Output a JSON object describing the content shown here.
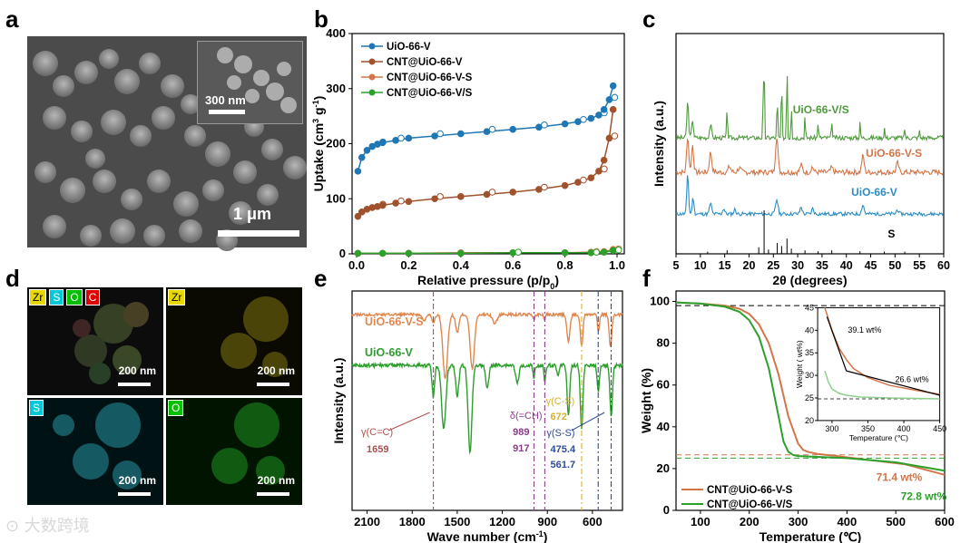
{
  "panels": {
    "a": {
      "letter": "a",
      "inset_scale": "300 nm",
      "main_scale": "1 μm"
    },
    "b": {
      "letter": "b"
    },
    "c": {
      "letter": "c"
    },
    "d": {
      "letter": "d",
      "tiles": [
        {
          "labels": [
            "Zr",
            "S",
            "O",
            "C"
          ],
          "scale": "200 nm"
        },
        {
          "labels": [
            "Zr"
          ],
          "scale": "200 nm"
        },
        {
          "labels": [
            "S"
          ],
          "scale": "200 nm"
        },
        {
          "labels": [
            "O"
          ],
          "scale": "200 nm"
        }
      ]
    },
    "e": {
      "letter": "e"
    },
    "f": {
      "letter": "f"
    }
  },
  "colors": {
    "blue": "#1f77b4",
    "brown": "#a0522d",
    "orange": "#d2764a",
    "green": "#2ca02c",
    "ftir_orange": "#e0874f",
    "ftir_green": "#2e9e2e"
  },
  "chart_data": [
    {
      "id": "b",
      "type": "line",
      "xlabel": "Relative pressure (p/p",
      "xlabel_sub": "0",
      "xlabel_end": ")",
      "ylabel": "Uptake (cm",
      "ylabel_sup": "3",
      "ylabel_mid": " g",
      "ylabel_sup2": "-1",
      "ylabel_end": ")",
      "xlim": [
        0,
        1.0
      ],
      "ylim": [
        0,
        400
      ],
      "xticks": [
        "0.0",
        "0.2",
        "0.4",
        "0.6",
        "0.8",
        "1.0"
      ],
      "xtick_values": [
        0,
        0.2,
        0.4,
        0.6,
        0.8,
        1.0
      ],
      "yticks": [
        "0",
        "100",
        "200",
        "300",
        "400"
      ],
      "ytick_values": [
        0,
        100,
        200,
        300,
        400
      ],
      "legend": [
        "UiO-66-V",
        "CNT@UiO-66-V",
        "CNT@UiO-66-V-S",
        "CNT@UiO-66-V/S"
      ],
      "series": [
        {
          "name": "UiO-66-V",
          "color": "#1f77b4",
          "x": [
            0.005,
            0.02,
            0.04,
            0.06,
            0.08,
            0.1,
            0.15,
            0.2,
            0.3,
            0.4,
            0.5,
            0.6,
            0.7,
            0.8,
            0.85,
            0.9,
            0.93,
            0.95,
            0.97,
            0.985
          ],
          "y": [
            150,
            175,
            188,
            195,
            199,
            202,
            206,
            210,
            214,
            218,
            222,
            226,
            230,
            236,
            240,
            246,
            252,
            262,
            280,
            305
          ]
        },
        {
          "name": "CNT@UiO-66-V",
          "color": "#a0522d",
          "x": [
            0.005,
            0.02,
            0.04,
            0.06,
            0.08,
            0.1,
            0.15,
            0.2,
            0.3,
            0.4,
            0.5,
            0.6,
            0.7,
            0.8,
            0.85,
            0.9,
            0.93,
            0.95,
            0.97,
            0.985
          ],
          "y": [
            68,
            76,
            81,
            84,
            86,
            88,
            92,
            95,
            100,
            104,
            108,
            112,
            117,
            124,
            130,
            138,
            150,
            170,
            210,
            262
          ]
        },
        {
          "name": "CNT@UiO-66-V-S",
          "color": "#d2764a",
          "x": [
            0.005,
            0.1,
            0.2,
            0.4,
            0.6,
            0.8,
            0.9,
            0.95,
            0.985
          ],
          "y": [
            1,
            1,
            1,
            2,
            2,
            2,
            3,
            4,
            8
          ]
        },
        {
          "name": "CNT@UiO-66-V/S",
          "color": "#2ca02c",
          "x": [
            0.005,
            0.1,
            0.2,
            0.4,
            0.6,
            0.8,
            0.9,
            0.95,
            0.985
          ],
          "y": [
            1,
            1,
            1,
            1,
            2,
            2,
            2,
            3,
            6
          ]
        }
      ]
    },
    {
      "id": "c",
      "type": "line",
      "xlabel": "2θ (degrees)",
      "ylabel": "Intensity (a.u.)",
      "xlim": [
        5,
        60
      ],
      "xticks": [
        "5",
        "10",
        "15",
        "20",
        "25",
        "30",
        "35",
        "40",
        "45",
        "50",
        "55",
        "60"
      ],
      "xtick_values": [
        5,
        10,
        15,
        20,
        25,
        30,
        35,
        40,
        45,
        50,
        55,
        60
      ],
      "series": [
        {
          "name": "UiO-66-V/S",
          "color": "#4f9a3c"
        },
        {
          "name": "UiO-66-V-S",
          "color": "#d2764a"
        },
        {
          "name": "UiO-66-V",
          "color": "#2b8cc4"
        },
        {
          "name": "S",
          "color": "#000000"
        }
      ],
      "sulfur_peaks": [
        [
          11.5,
          5
        ],
        [
          15.5,
          8
        ],
        [
          22.0,
          15
        ],
        [
          23.1,
          100
        ],
        [
          24.0,
          10
        ],
        [
          25.8,
          25
        ],
        [
          26.7,
          18
        ],
        [
          27.8,
          35
        ],
        [
          28.7,
          12
        ],
        [
          31.5,
          8
        ],
        [
          34.2,
          6
        ],
        [
          37.0,
          8
        ],
        [
          42.8,
          6
        ],
        [
          47.8,
          5
        ],
        [
          52.0,
          5
        ]
      ]
    },
    {
      "id": "e",
      "type": "line",
      "xlabel": "Wave number (cm",
      "xlabel_sup": "-1",
      "xlabel_end": ")",
      "ylabel": "Intensity (a.u.)",
      "xlim": [
        2200,
        400
      ],
      "xticks": [
        "2100",
        "1800",
        "1500",
        "1200",
        "900",
        "600"
      ],
      "xtick_values": [
        2100,
        1800,
        1500,
        1200,
        900,
        600
      ],
      "series": [
        {
          "name": "UiO-66-V-S",
          "color": "#e0874f"
        },
        {
          "name": "UiO-66-V",
          "color": "#2e9e2e"
        }
      ],
      "annotations": [
        {
          "label": "γ(C=C)",
          "value": "1659",
          "x": 1659,
          "color": "#b05050"
        },
        {
          "label": "δ(=CH)",
          "value": "989",
          "value2": "917",
          "x": 989,
          "x2": 917,
          "color": "#8a3d8a"
        },
        {
          "label": "γ(C-S)",
          "value": "672",
          "x": 672,
          "color": "#d4b22a"
        },
        {
          "label": "γ(S-S)",
          "value": "475.4",
          "value2": "561.7",
          "x": 561.7,
          "x2": 475.4,
          "color": "#2f4aa0"
        }
      ]
    },
    {
      "id": "f",
      "type": "line",
      "xlabel": "Temperature (℃)",
      "ylabel": "Weight (%)",
      "xlim": [
        50,
        600
      ],
      "ylim": [
        0,
        105
      ],
      "xticks": [
        "100",
        "200",
        "300",
        "400",
        "500",
        "600"
      ],
      "xtick_values": [
        100,
        200,
        300,
        400,
        500,
        600
      ],
      "yticks": [
        "0",
        "20",
        "40",
        "60",
        "80",
        "100"
      ],
      "ytick_values": [
        0,
        20,
        40,
        60,
        80,
        100
      ],
      "legend": [
        "CNT@UiO-66-V-S",
        "CNT@UiO-66-V/S"
      ],
      "series": [
        {
          "name": "CNT@UiO-66-V-S",
          "color": "#d2764a",
          "x": [
            50,
            100,
            150,
            180,
            200,
            220,
            240,
            260,
            280,
            300,
            310,
            320,
            340,
            380,
            450,
            520,
            600
          ],
          "y": [
            99.5,
            99,
            98,
            96.5,
            94,
            89,
            80,
            65,
            45,
            32,
            29,
            28,
            27,
            26,
            24,
            22,
            17
          ]
        },
        {
          "name": "CNT@UiO-66-V/S",
          "color": "#2ca02c",
          "x": [
            50,
            100,
            150,
            180,
            200,
            220,
            240,
            260,
            270,
            280,
            290,
            300,
            350,
            400,
            500,
            600
          ],
          "y": [
            99.5,
            99,
            97.5,
            95,
            91,
            83,
            68,
            45,
            33,
            28,
            26.5,
            26,
            25.5,
            25,
            23,
            19
          ]
        }
      ],
      "annotations": [
        "71.4 wt%",
        "72.8 wt%"
      ],
      "inset": {
        "xlabel": "Temperature (℃)",
        "ylabel": "Weight ( wt%)",
        "xlim": [
          280,
          450
        ],
        "ylim": [
          20,
          45
        ],
        "xticks": [
          "300",
          "350",
          "400",
          "450"
        ],
        "xtick_values": [
          300,
          350,
          400,
          450
        ],
        "yticks": [
          "20",
          "25",
          "30",
          "35",
          "40",
          "45"
        ],
        "ytick_values": [
          20,
          25,
          30,
          35,
          40,
          45
        ],
        "labels": [
          "39.1 wt%",
          "26.6 wt%"
        ],
        "series": [
          {
            "name": "CNT@UiO-66-V-S",
            "color": "#d2764a",
            "x": [
              290,
              300,
              310,
              320,
              330,
              350,
              380,
              420,
              450
            ],
            "y": [
              45,
              40,
              36,
              33.5,
              31.5,
              29.5,
              27.8,
              26.6,
              25.8
            ]
          },
          {
            "name": "CNT@UiO-66-V/S",
            "color": "#8ccf8c",
            "x": [
              290,
              295,
              300,
              310,
              320,
              340,
              380,
              450
            ],
            "y": [
              31,
              28.5,
              27,
              26,
              25.6,
              25.2,
              25,
              24.8
            ]
          }
        ]
      }
    }
  ]
}
